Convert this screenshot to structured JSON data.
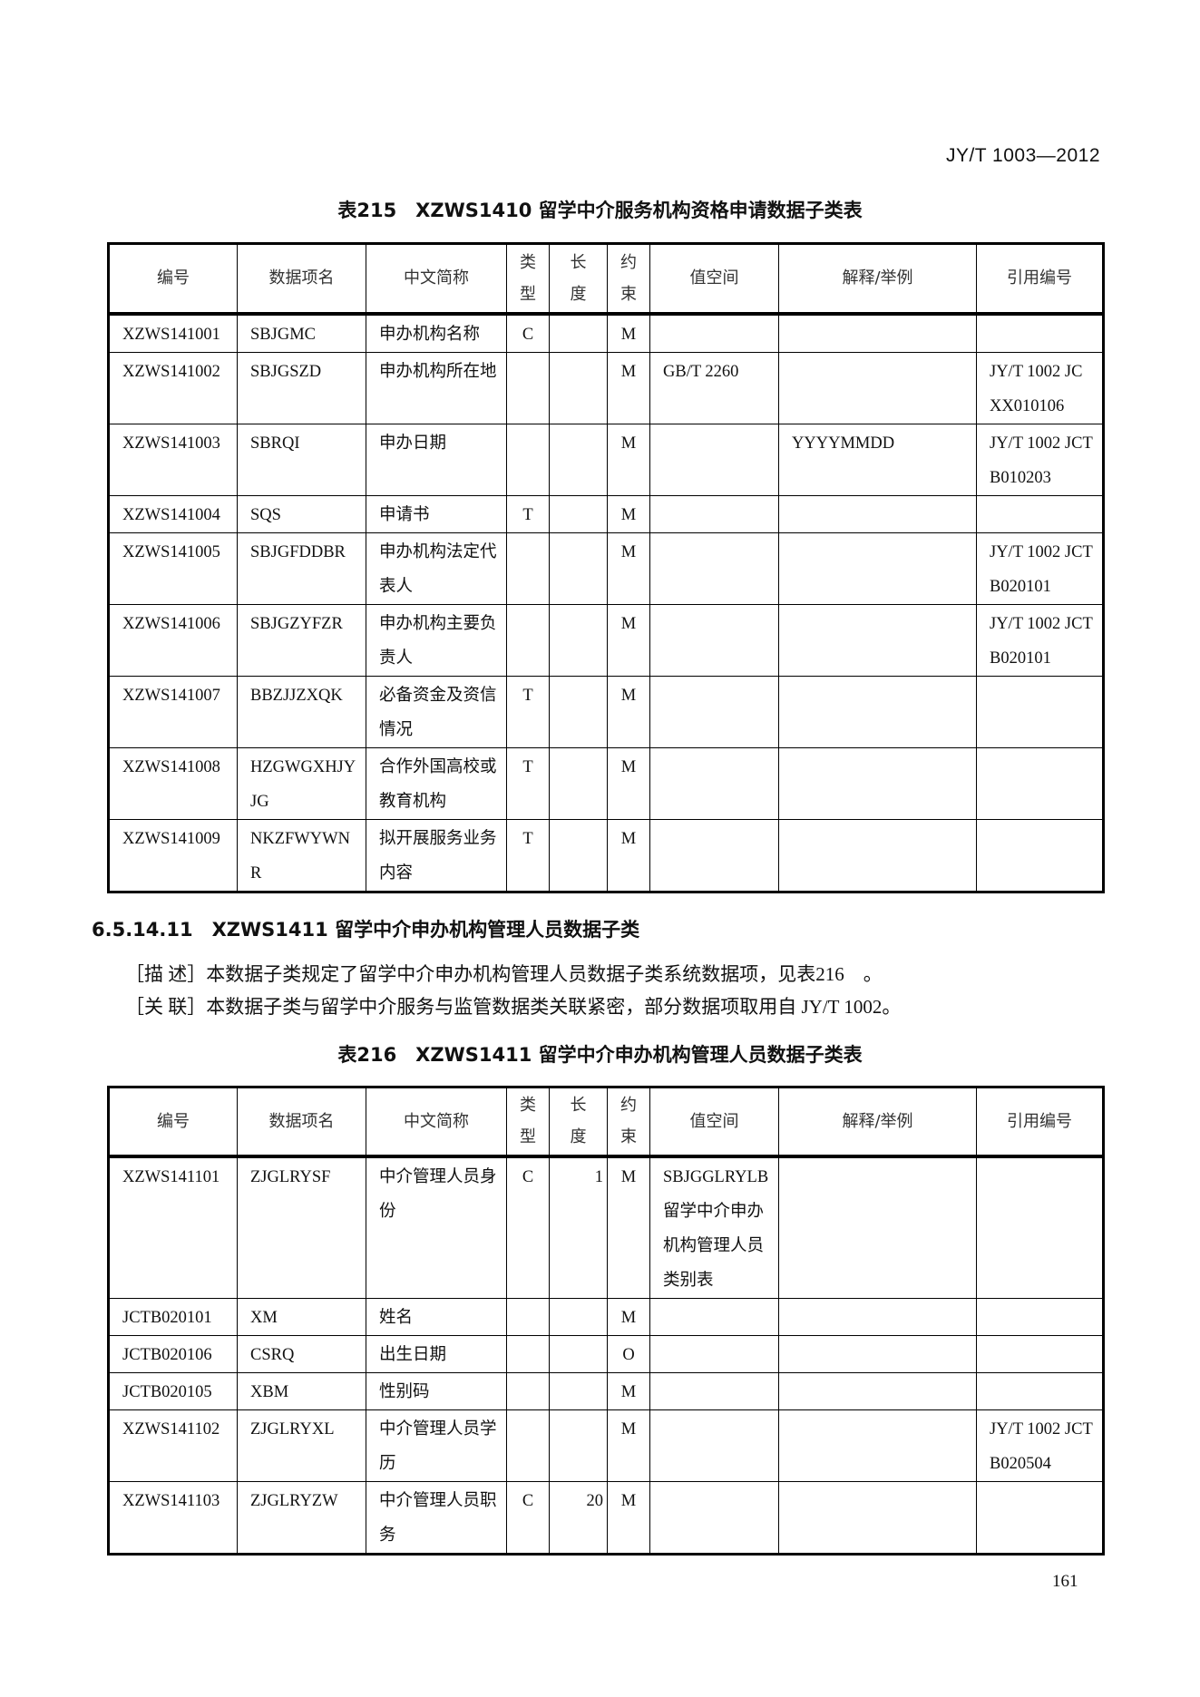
{
  "header": {
    "standard_no": "JY/T 1003—2012"
  },
  "columns": [
    "编号",
    "数据项名",
    "中文简称",
    "类\n型",
    "长\n度",
    "约\n束",
    "值空间",
    "解释/举例",
    "引用编号"
  ],
  "table215": {
    "title": "表215　XZWS1410 留学中介服务机构资格申请数据子类表",
    "rows": [
      [
        "XZWS141001",
        "SBJGMC",
        "申办机构名称",
        "C",
        "",
        "M",
        "",
        "",
        ""
      ],
      [
        "XZWS141002",
        "SBJGSZD",
        "申办机构所在地",
        "",
        "",
        "M",
        "GB/T 2260",
        "",
        "JY/T 1002 JCXX010106"
      ],
      [
        "XZWS141003",
        "SBRQI",
        "申办日期",
        "",
        "",
        "M",
        "",
        "YYYYMMDD",
        "JY/T 1002 JCTB010203"
      ],
      [
        "XZWS141004",
        "SQS",
        "申请书",
        "T",
        "",
        "M",
        "",
        "",
        ""
      ],
      [
        "XZWS141005",
        "SBJGFDDBR",
        "申办机构法定代表人",
        "",
        "",
        "M",
        "",
        "",
        "JY/T 1002 JCTB020101"
      ],
      [
        "XZWS141006",
        "SBJGZYFZR",
        "申办机构主要负责人",
        "",
        "",
        "M",
        "",
        "",
        "JY/T 1002 JCTB020101"
      ],
      [
        "XZWS141007",
        "BBZJJZXQK",
        "必备资金及资信情况",
        "T",
        "",
        "M",
        "",
        "",
        ""
      ],
      [
        "XZWS141008",
        "HZGWGXHJYJG",
        "合作外国高校或教育机构",
        "T",
        "",
        "M",
        "",
        "",
        ""
      ],
      [
        "XZWS141009",
        "NKZFWYWNR",
        "拟开展服务业务内容",
        "T",
        "",
        "M",
        "",
        "",
        ""
      ]
    ]
  },
  "section": {
    "heading": "6.5.14.11　XZWS1411 留学中介申办机构管理人员数据子类",
    "describe": "［描 述］本数据子类规定了留学中介申办机构管理人员数据子类系统数据项，见表216　。",
    "relation": "［关 联］本数据子类与留学中介服务与监管数据类关联紧密，部分数据项取用自 JY/T 1002。"
  },
  "table216": {
    "title": "表216　XZWS1411 留学中介申办机构管理人员数据子类表",
    "rows": [
      [
        "XZWS141101",
        "ZJGLRYSF",
        "中介管理人员身份",
        "C",
        "1",
        "M",
        "SBJGGLRYLB 留学中介申办机构管理人员类别表",
        "",
        ""
      ],
      [
        "JCTB020101",
        "XM",
        "姓名",
        "",
        "",
        "M",
        "",
        "",
        ""
      ],
      [
        "JCTB020106",
        "CSRQ",
        "出生日期",
        "",
        "",
        "O",
        "",
        "",
        ""
      ],
      [
        "JCTB020105",
        "XBM",
        "性别码",
        "",
        "",
        "M",
        "",
        "",
        ""
      ],
      [
        "XZWS141102",
        "ZJGLRYXL",
        "中介管理人员学历",
        "",
        "",
        "M",
        "",
        "",
        "JY/T 1002 JCTB020504"
      ],
      [
        "XZWS141103",
        "ZJGLRYZW",
        "中介管理人员职务",
        "C",
        "20",
        "M",
        "",
        "",
        ""
      ]
    ]
  },
  "footer": {
    "page_number": "161"
  }
}
